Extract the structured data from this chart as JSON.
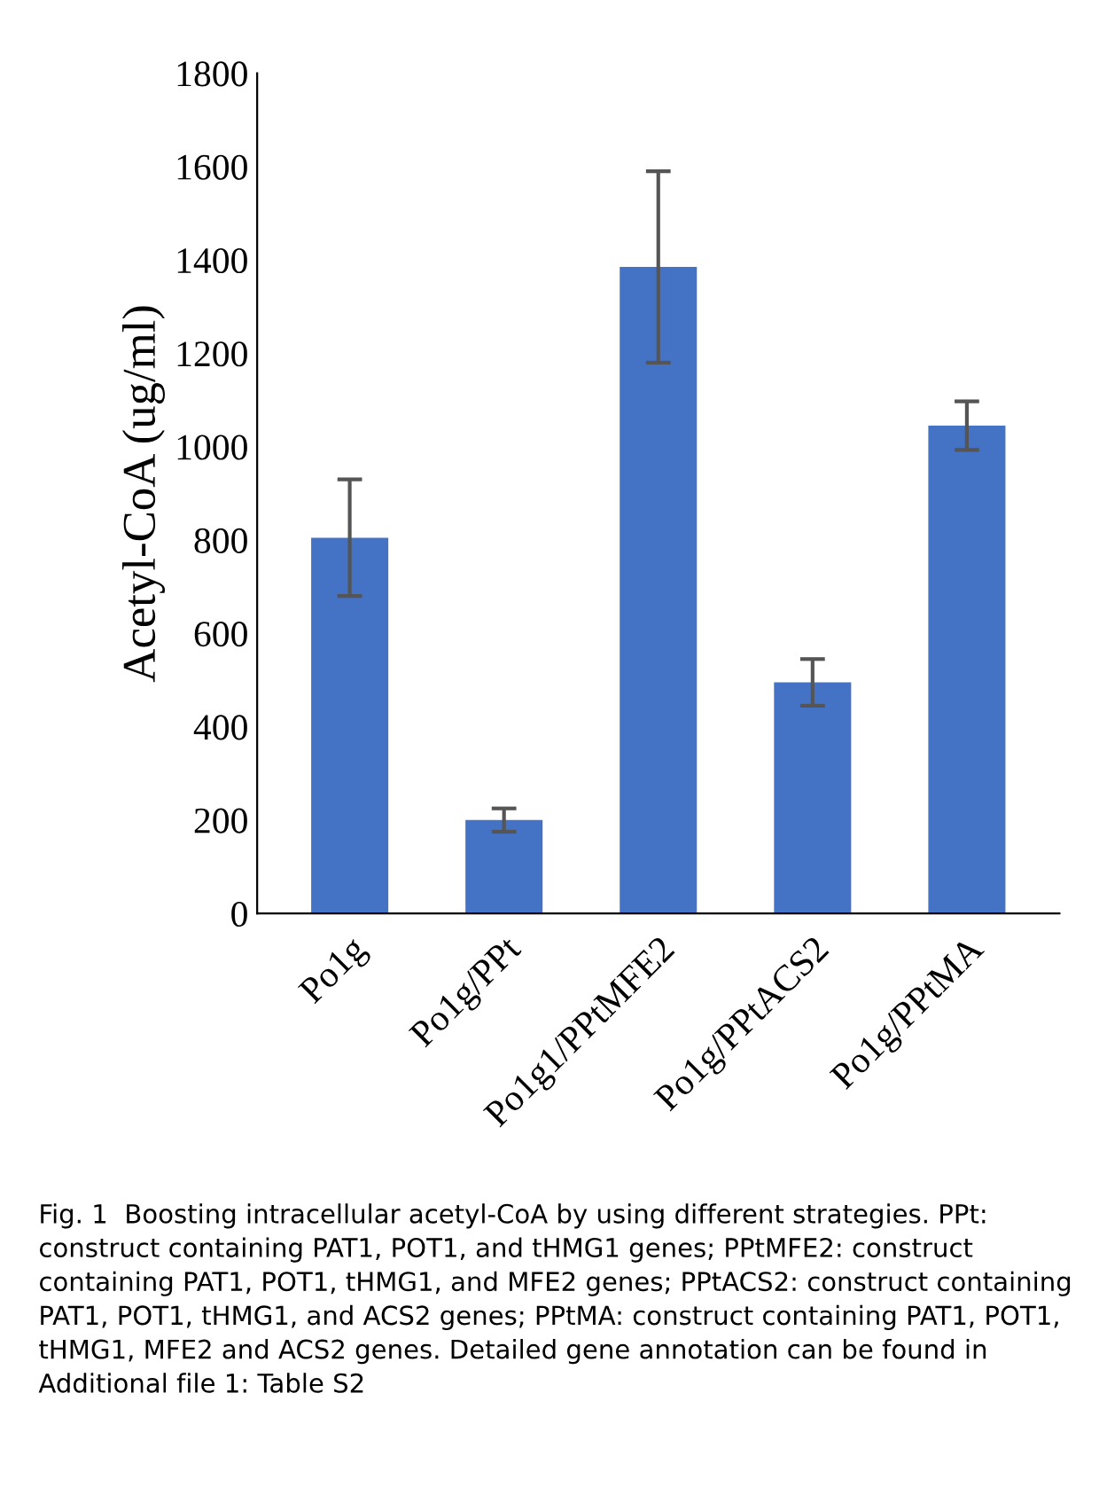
{
  "chart_data": {
    "type": "bar",
    "ylabel": "Acetyl-CoA (ug/ml)",
    "categories": [
      "Po1g",
      "Po1g/PPt",
      "Po1g1/PPtMFE2",
      "Po1g/PPtACS2",
      "Po1g/PPtMA"
    ],
    "values": [
      805,
      200,
      1385,
      495,
      1045
    ],
    "errors": [
      125,
      25,
      205,
      50,
      52
    ],
    "color": "#4472c4",
    "ylim": [
      0,
      1800
    ],
    "yticks": [
      0,
      200,
      400,
      600,
      800,
      1000,
      1200,
      1400,
      1600,
      1800
    ],
    "grid": false,
    "annotations": [
      "Fig. 1  Boosting intracellular acetyl-CoA by using different strategies. PPt: construct containing PAT1, POT1, and tHMG1 genes; PPtMFE2: construct containing PAT1, POT1, tHMG1, and MFE2 genes; PPtACS2: construct containing PAT1, POT1, tHMG1, and ACS2 genes; PPtMA: construct containing PAT1, POT1, tHMG1, MFE2 and ACS2 genes. Detailed gene annotation can be found in Additional file 1: Table S2"
    ]
  }
}
